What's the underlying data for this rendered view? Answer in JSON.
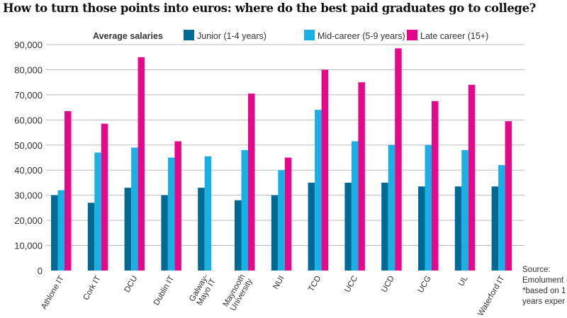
{
  "chart_data": {
    "type": "bar",
    "title": "How to turn those points into euros: where do the best paid graduates go to college?",
    "legend_title": "Average salaries",
    "legend_position": "top",
    "categories": [
      "Athlone IT",
      "Cork IT",
      "DCU",
      "Dublin IT",
      "Galway-Mayo IT",
      "Maynooth University",
      "NUI",
      "TCD",
      "UCC",
      "UCD",
      "UCG",
      "UL",
      "Waterford IT"
    ],
    "series": [
      {
        "name": "Junior (1-4 years)",
        "color": "#006a94",
        "values": [
          30000,
          27000,
          33000,
          30000,
          33000,
          28000,
          30000,
          35000,
          35000,
          35000,
          33500,
          33500,
          33500
        ]
      },
      {
        "name": "Mid-career (5-9 years)",
        "color": "#1ab0e6",
        "values": [
          32000,
          47000,
          49000,
          45000,
          45500,
          48000,
          40000,
          64000,
          51500,
          50000,
          50000,
          48000,
          42000
        ]
      },
      {
        "name": "Late career (15+)",
        "color": "#e5088b",
        "values": [
          63500,
          58500,
          85000,
          51500,
          null,
          70500,
          45000,
          80000,
          75000,
          88500,
          67500,
          74000,
          59500
        ]
      }
    ],
    "yticks": [
      "0",
      "10,000",
      "20,000",
      "30,000",
      "40,000",
      "50,000",
      "60,000",
      "70,000",
      "80,000",
      "90,000"
    ],
    "ylim": [
      0,
      90000
    ],
    "grid": true
  },
  "source": [
    "Source:",
    "Emolument",
    "*based on 1",
    "years exper"
  ]
}
